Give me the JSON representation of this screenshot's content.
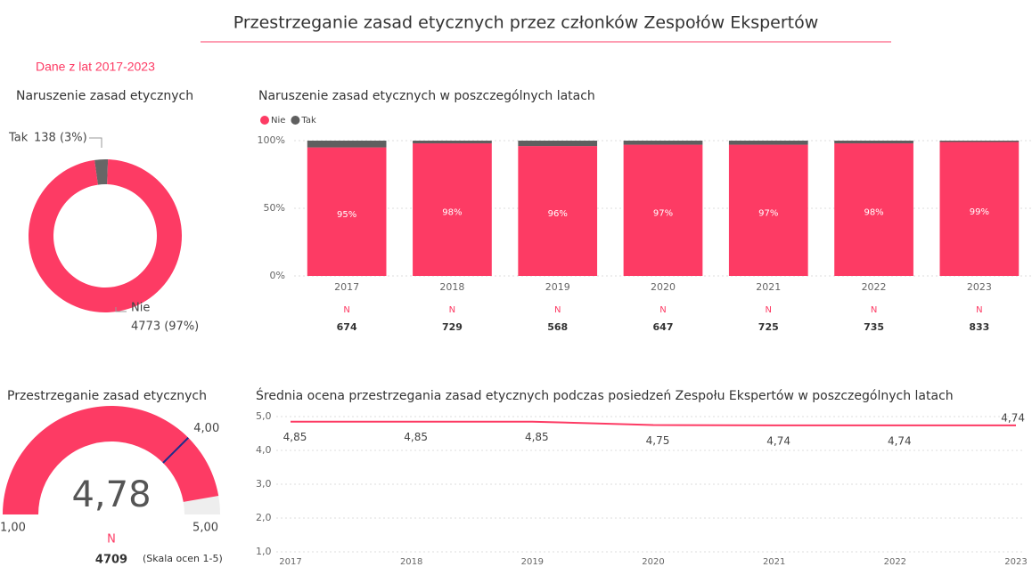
{
  "header": {
    "title": "Przestrzeganie zasad etycznych przez członków Zespołów Ekspertów",
    "subtitle": "Dane z lat 2017-2023"
  },
  "chart_data": [
    {
      "type": "pie",
      "title": "Naruszenie zasad etycznych",
      "categories": [
        "Tak",
        "Nie"
      ],
      "values": [
        138,
        4773
      ],
      "value_labels": [
        "138 (3%)",
        "4773 (97%)"
      ],
      "colors": [
        "#666666",
        "#fd3b64"
      ]
    },
    {
      "type": "bar",
      "stacked": true,
      "title": "Naruszenie zasad etycznych w poszczególnych latach",
      "categories": [
        "2017",
        "2018",
        "2019",
        "2020",
        "2021",
        "2022",
        "2023"
      ],
      "series": [
        {
          "name": "Nie",
          "color": "#fd3b64",
          "values": [
            95,
            98,
            96,
            97,
            97,
            98,
            99
          ],
          "value_labels": [
            "95%",
            "98%",
            "96%",
            "97%",
            "97%",
            "98%",
            "99%"
          ]
        },
        {
          "name": "Tak",
          "color": "#5f5f5f",
          "values": [
            5,
            2,
            4,
            3,
            3,
            2,
            1
          ]
        }
      ],
      "ylim": [
        0,
        100
      ],
      "yticks": [
        {
          "value": 0,
          "label": "0%"
        },
        {
          "value": 50,
          "label": "50%"
        },
        {
          "value": 100,
          "label": "100%"
        }
      ],
      "grid": true,
      "legend": "top-left",
      "count_label": "N",
      "counts": [
        674,
        729,
        568,
        647,
        725,
        735,
        833
      ]
    },
    {
      "type": "gauge",
      "title": "Przestrzeganie zasad etycznych",
      "value": 4.78,
      "value_label": "4,78",
      "min": {
        "value": 1,
        "label": "1,00"
      },
      "max": {
        "value": 5,
        "label": "5,00"
      },
      "target": {
        "value": 4,
        "label": "4,00"
      },
      "color": "#fd3b64",
      "target_color": "#1f2d8a",
      "count_label": "N",
      "count": 4709,
      "note": "(Skala ocen 1-5)"
    },
    {
      "type": "line",
      "title": "Średnia ocena przestrzegania zasad etycznych podczas posiedzeń Zespołu Ekspertów w poszczególnych latach",
      "categories": [
        "2017",
        "2018",
        "2019",
        "2020",
        "2021",
        "2022",
        "2023"
      ],
      "values": [
        4.85,
        4.85,
        4.85,
        4.75,
        4.74,
        4.74,
        4.74
      ],
      "value_labels": [
        "4,85",
        "4,85",
        "4,85",
        "4,75",
        "4,74",
        "4,74",
        "4,74"
      ],
      "color": "#fd3b64",
      "ylim": [
        1,
        5
      ],
      "yticks": [
        {
          "value": 1,
          "label": "1,0"
        },
        {
          "value": 2,
          "label": "2,0"
        },
        {
          "value": 3,
          "label": "3,0"
        },
        {
          "value": 4,
          "label": "4,0"
        },
        {
          "value": 5,
          "label": "5,0"
        }
      ],
      "grid": true
    }
  ]
}
